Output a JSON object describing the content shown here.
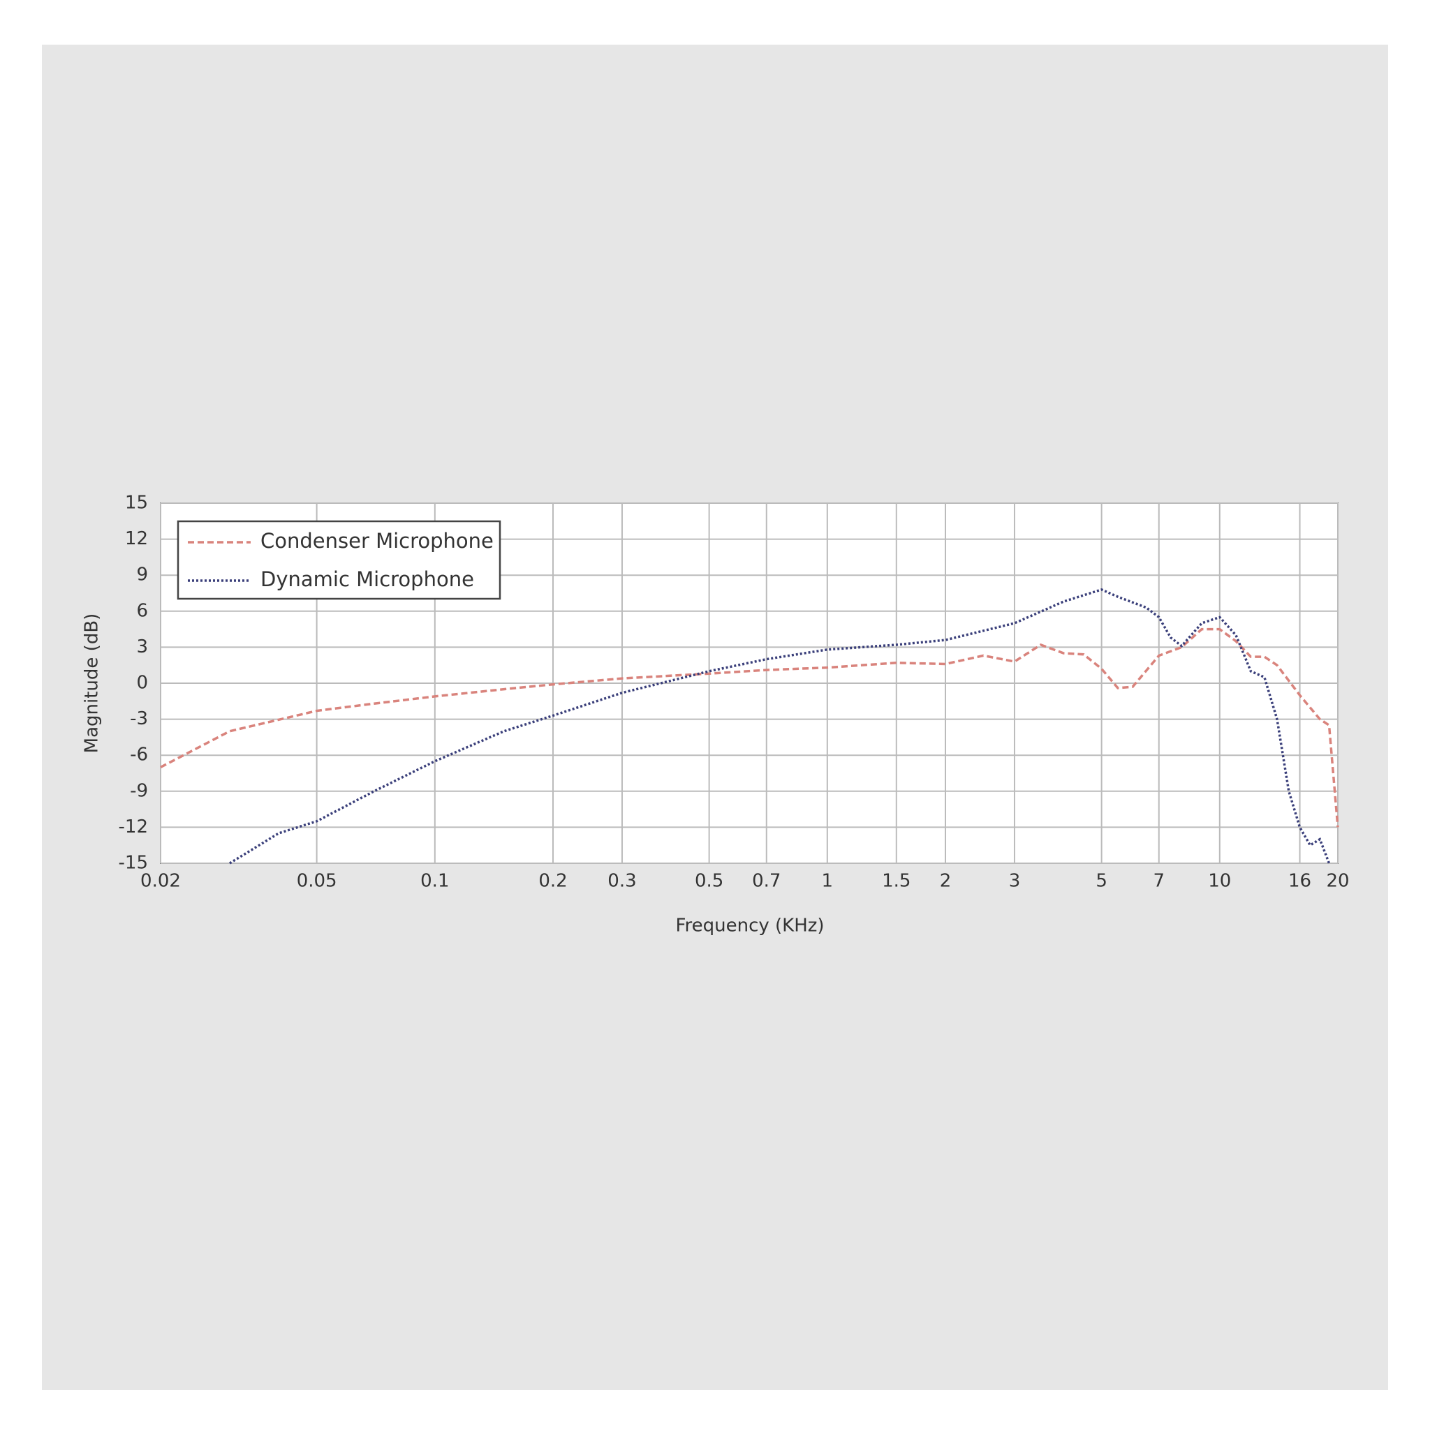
{
  "chart_data": {
    "type": "line",
    "xlabel": "Frequency (KHz)",
    "ylabel": "Magnitude (dB)",
    "xscale": "log",
    "grid": true,
    "legend": "upper left",
    "xlim": [
      0.02,
      20
    ],
    "ylim": [
      -15,
      15
    ],
    "xticks": [
      0.02,
      0.05,
      0.1,
      0.2,
      0.3,
      0.5,
      0.7,
      1,
      1.5,
      2,
      3,
      5,
      7,
      10,
      16,
      20
    ],
    "yticks": [
      -15,
      -12,
      -9,
      -6,
      -3,
      0,
      3,
      6,
      9,
      12,
      15
    ],
    "series": [
      {
        "name": "Condenser Microphone",
        "color": "#d9837c",
        "style": "dashed",
        "x": [
          0.02,
          0.03,
          0.05,
          0.07,
          0.1,
          0.15,
          0.2,
          0.3,
          0.5,
          0.7,
          1,
          1.5,
          2,
          2.5,
          3,
          3.5,
          4,
          4.5,
          5,
          5.5,
          6,
          7,
          8,
          9,
          10,
          11,
          12,
          13,
          14,
          16,
          18,
          19,
          20
        ],
        "values": [
          -7,
          -4,
          -2.3,
          -1.7,
          -1.1,
          -0.5,
          -0.1,
          0.4,
          0.8,
          1.1,
          1.3,
          1.7,
          1.6,
          2.3,
          1.8,
          3.2,
          2.5,
          2.4,
          1.2,
          -0.4,
          -0.3,
          2.3,
          3,
          4.5,
          4.5,
          3.5,
          2.2,
          2.2,
          1.5,
          -1,
          -3,
          -3.5,
          -12
        ]
      },
      {
        "name": "Dynamic Microphone",
        "color": "#3a3f7a",
        "style": "dotted",
        "x": [
          0.03,
          0.04,
          0.05,
          0.07,
          0.1,
          0.15,
          0.2,
          0.3,
          0.5,
          0.7,
          1,
          1.5,
          2,
          3,
          4,
          5,
          5.5,
          6.5,
          7,
          7.5,
          8,
          9,
          10,
          11,
          12,
          13,
          14,
          15,
          16,
          17,
          18,
          19
        ],
        "values": [
          -15,
          -12.5,
          -11.5,
          -9,
          -6.5,
          -4,
          -2.7,
          -0.8,
          1,
          2,
          2.8,
          3.2,
          3.6,
          5,
          6.8,
          7.8,
          7.2,
          6.3,
          5.5,
          3.8,
          3.1,
          5,
          5.5,
          4,
          1,
          0.5,
          -3,
          -9,
          -12,
          -13.5,
          -13,
          -15
        ]
      }
    ]
  }
}
